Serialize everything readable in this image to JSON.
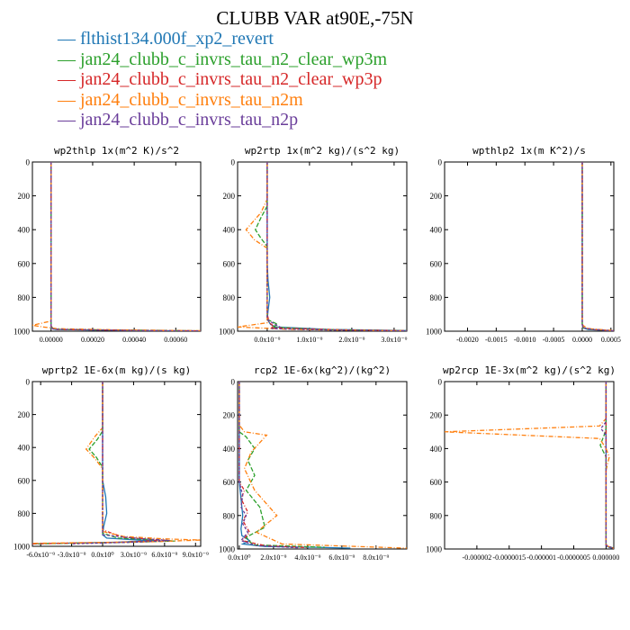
{
  "title": "CLUBB VAR at90E,-75N",
  "legend": [
    {
      "label": "flthist134.000f_xp2_revert",
      "color": "#1f77b4"
    },
    {
      "label": "jan24_clubb_c_invrs_tau_n2_clear_wp3m",
      "color": "#2ca02c"
    },
    {
      "label": "jan24_clubb_c_invrs_tau_n2_clear_wp3p",
      "color": "#d62728"
    },
    {
      "label": "jan24_clubb_c_invrs_tau_n2m",
      "color": "#ff7f0e"
    },
    {
      "label": "jan24_clubb_c_invrs_tau_n2p",
      "color": "#6a3d9a"
    }
  ],
  "chart_data": [
    {
      "type": "line",
      "title": "wp2thlp   1x(m^2 K)/s^2",
      "ylim": [
        1000,
        0
      ],
      "yticks": [
        "0",
        "200",
        "400",
        "600",
        "800",
        "1000"
      ],
      "xlim": [
        -9e-05,
        0.00072
      ],
      "xticks": [
        {
          "v": 0.0,
          "label": "0.00000"
        },
        {
          "v": 0.0002,
          "label": "0.00020"
        },
        {
          "v": 0.0004,
          "label": "0.00040"
        },
        {
          "v": 0.0006,
          "label": "0.00060"
        }
      ],
      "series": [
        {
          "name": "flthist134.000f_xp2_revert",
          "x": [
            0,
            0,
            0,
            2e-05,
            0.00045,
            0.00072
          ],
          "y": [
            0,
            960,
            980,
            990,
            997,
            999
          ]
        },
        {
          "name": "jan24_clubb_c_invrs_tau_n2_clear_wp3m",
          "x": [
            0,
            0,
            1e-05,
            5e-05,
            0.0006,
            0.00072
          ],
          "y": [
            0,
            970,
            985,
            990,
            996,
            998
          ]
        },
        {
          "name": "jan24_clubb_c_invrs_tau_n2_clear_wp3p",
          "x": [
            0,
            0,
            1e-05,
            3e-05,
            0.0005,
            0.00072
          ],
          "y": [
            0,
            970,
            985,
            990,
            996,
            998
          ]
        },
        {
          "name": "jan24_clubb_c_invrs_tau_n2m",
          "x": [
            0,
            0,
            -9e-05,
            -4e-05,
            3e-05,
            0.0003,
            0.00072
          ],
          "y": [
            0,
            940,
            965,
            975,
            985,
            992,
            997
          ]
        },
        {
          "name": "jan24_clubb_c_invrs_tau_n2p",
          "x": [
            0,
            0,
            1e-05,
            0.0004,
            0.00072
          ],
          "y": [
            0,
            975,
            988,
            996,
            998
          ]
        }
      ]
    },
    {
      "type": "line",
      "title": "wp2rtp   1x(m^2 kg)/(s^2 kg)",
      "ylim": [
        1000,
        0
      ],
      "yticks": [
        "0",
        "200",
        "400",
        "600",
        "800",
        "1000"
      ],
      "xlim": [
        -7e-10,
        3.3e-09
      ],
      "xticks": [
        {
          "v": 0.0,
          "label": "0.0x10⁻⁹"
        },
        {
          "v": 1e-09,
          "label": "1.0x10⁻⁹"
        },
        {
          "v": 2e-09,
          "label": "2.0x10⁻⁹"
        },
        {
          "v": 3e-09,
          "label": "3.0x10⁻⁹"
        }
      ],
      "series": [
        {
          "name": "flthist134.000f_xp2_revert",
          "x": [
            0,
            0,
            2e-11,
            6e-11,
            2e-11,
            0,
            8e-11,
            2e-10,
            1.5e-09,
            3.3e-09
          ],
          "y": [
            0,
            600,
            700,
            800,
            880,
            930,
            960,
            975,
            990,
            996
          ]
        },
        {
          "name": "jan24_clubb_c_invrs_tau_n2_clear_wp3m",
          "x": [
            0,
            0,
            -1.5e-10,
            -2.8e-10,
            -1.5e-10,
            0,
            0,
            2.5e-10,
            1.2e-10,
            1.2e-09,
            3.3e-09
          ],
          "y": [
            0,
            260,
            330,
            400,
            450,
            500,
            930,
            960,
            975,
            990,
            997
          ]
        },
        {
          "name": "jan24_clubb_c_invrs_tau_n2_clear_wp3p",
          "x": [
            0,
            0,
            5e-11,
            1.5e-10,
            8e-11,
            1.8e-09,
            3.3e-09
          ],
          "y": [
            0,
            900,
            950,
            970,
            980,
            992,
            997
          ]
        },
        {
          "name": "jan24_clubb_c_invrs_tau_n2m",
          "x": [
            0,
            0,
            -1.5e-10,
            -5e-10,
            -3e-10,
            0,
            0,
            -7e-10,
            6e-10,
            3.3e-09
          ],
          "y": [
            0,
            220,
            300,
            400,
            460,
            510,
            950,
            975,
            990,
            998
          ]
        },
        {
          "name": "jan24_clubb_c_invrs_tau_n2p",
          "x": [
            0,
            0,
            1.5e-10,
            3e-10,
            1e-10,
            1.5e-09,
            3.3e-09
          ],
          "y": [
            0,
            930,
            955,
            975,
            985,
            993,
            998
          ]
        }
      ]
    },
    {
      "type": "line",
      "title": "wpthlp2   1x(m K^2)/s",
      "ylim": [
        1000,
        0
      ],
      "yticks": [
        "0",
        "200",
        "400",
        "600",
        "800",
        "1000"
      ],
      "xlim": [
        -0.0024,
        0.00055
      ],
      "xticks": [
        {
          "v": -0.002,
          "label": "-0.0020"
        },
        {
          "v": -0.0015,
          "label": "-0.0015"
        },
        {
          "v": -0.001,
          "label": "-0.0010"
        },
        {
          "v": -0.0005,
          "label": "-0.0005"
        },
        {
          "v": 0.0,
          "label": "0.0000"
        },
        {
          "v": 0.0005,
          "label": "0.0005"
        }
      ],
      "series": [
        {
          "name": "flthist134.000f_xp2_revert",
          "x": [
            0,
            0,
            1e-05,
            0.0001,
            0.00055
          ],
          "y": [
            0,
            960,
            980,
            990,
            998
          ]
        },
        {
          "name": "jan24_clubb_c_invrs_tau_n2_clear_wp3m",
          "x": [
            0,
            0,
            2e-05,
            0.0002,
            0.00055
          ],
          "y": [
            0,
            960,
            980,
            990,
            998
          ]
        },
        {
          "name": "jan24_clubb_c_invrs_tau_n2_clear_wp3p",
          "x": [
            0,
            0,
            2e-05,
            0.0002,
            0.00055
          ],
          "y": [
            0,
            960,
            980,
            990,
            998
          ]
        },
        {
          "name": "jan24_clubb_c_invrs_tau_n2m",
          "x": [
            0,
            0,
            1e-05,
            0.0001,
            0.00055
          ],
          "y": [
            0,
            940,
            965,
            985,
            996
          ]
        },
        {
          "name": "jan24_clubb_c_invrs_tau_n2p",
          "x": [
            0,
            0,
            2e-05,
            0.0002,
            0.00055
          ],
          "y": [
            0,
            960,
            980,
            990,
            998
          ]
        }
      ]
    },
    {
      "type": "line",
      "title": "wprtp2   1E-6x(m kg)/(s kg)",
      "ylim": [
        1000,
        0
      ],
      "yticks": [
        "0",
        "200",
        "400",
        "600",
        "800",
        "1000"
      ],
      "xlim": [
        -6.8e-09,
        9.5e-09
      ],
      "xticks": [
        {
          "v": -6e-09,
          "label": "-6.0x10⁻⁹"
        },
        {
          "v": -3e-09,
          "label": "-3.0x10⁻⁹"
        },
        {
          "v": 0.0,
          "label": "0.0x10⁰"
        },
        {
          "v": 3e-09,
          "label": "3.0x10⁻⁹"
        },
        {
          "v": 6e-09,
          "label": "6.0x10⁻⁹"
        },
        {
          "v": 9e-09,
          "label": "9.0x10⁻⁹"
        }
      ],
      "series": [
        {
          "name": "flthist134.000f_xp2_revert",
          "x": [
            0,
            0,
            3e-10,
            4e-10,
            1e-10,
            0,
            4e-10,
            3e-09,
            5e-09,
            1.5e-09,
            -6.8e-09
          ],
          "y": [
            0,
            600,
            700,
            800,
            880,
            930,
            950,
            960,
            965,
            975,
            985
          ]
        },
        {
          "name": "jan24_clubb_c_invrs_tau_n2_clear_wp3m",
          "x": [
            0,
            0,
            -5e-10,
            -1.3e-09,
            -6e-10,
            0,
            0,
            1.5e-09,
            5e-09,
            7e-09,
            3e-09,
            -6.8e-09
          ],
          "y": [
            0,
            300,
            350,
            410,
            460,
            520,
            920,
            950,
            960,
            968,
            975,
            985
          ]
        },
        {
          "name": "jan24_clubb_c_invrs_tau_n2_clear_wp3p",
          "x": [
            0,
            0,
            2e-09,
            6e-09,
            2e-09,
            -6.8e-09
          ],
          "y": [
            0,
            900,
            945,
            962,
            975,
            985
          ]
        },
        {
          "name": "jan24_clubb_c_invrs_tau_n2m",
          "x": [
            0,
            0,
            -7e-10,
            -1.6e-09,
            -7e-10,
            0,
            0,
            2e-09,
            6e-09,
            9.5e-09,
            5e-09,
            -6.8e-09
          ],
          "y": [
            0,
            280,
            330,
            410,
            470,
            530,
            910,
            940,
            955,
            962,
            972,
            982
          ]
        },
        {
          "name": "jan24_clubb_c_invrs_tau_n2p",
          "x": [
            0,
            0,
            3e-09,
            6.5e-09,
            3e-09,
            -3e-09
          ],
          "y": [
            0,
            930,
            950,
            965,
            975,
            985
          ]
        }
      ]
    },
    {
      "type": "line",
      "title": "rcp2   1E-6x(kg^2)/(kg^2)",
      "ylim": [
        1000,
        0
      ],
      "yticks": [
        "0",
        "200",
        "400",
        "600",
        "800",
        "1000"
      ],
      "xlim": [
        -1e-10,
        9.8e-09
      ],
      "xticks": [
        {
          "v": 0.0,
          "label": "0.0x10⁰"
        },
        {
          "v": 2e-09,
          "label": "2.0x10⁻⁹"
        },
        {
          "v": 4e-09,
          "label": "4.0x10⁻⁹"
        },
        {
          "v": 6e-09,
          "label": "6.0x10⁻⁹"
        },
        {
          "v": 8e-09,
          "label": "8.0x10⁻⁹"
        }
      ],
      "series": [
        {
          "name": "flthist134.000f_xp2_revert",
          "x": [
            0,
            0,
            1e-10,
            2e-10,
            1e-10,
            1.5e-10,
            6e-10,
            2e-10,
            1.5e-09,
            4.5e-09,
            6.5e-09
          ],
          "y": [
            0,
            600,
            700,
            800,
            880,
            920,
            950,
            970,
            985,
            990,
            995
          ]
        },
        {
          "name": "jan24_clubb_c_invrs_tau_n2_clear_wp3m",
          "x": [
            0,
            0,
            4e-10,
            9e-10,
            5e-10,
            9e-10,
            4e-10,
            1.2e-09,
            1.5e-09,
            4e-10,
            8e-10,
            5e-09
          ],
          "y": [
            0,
            300,
            330,
            400,
            470,
            560,
            650,
            750,
            870,
            930,
            975,
            990
          ]
        },
        {
          "name": "jan24_clubb_c_invrs_tau_n2_clear_wp3p",
          "x": [
            0,
            0,
            3e-10,
            1e-10,
            5e-10,
            2e-10,
            6e-10,
            2e-10,
            1.5e-09,
            4e-09
          ],
          "y": [
            0,
            600,
            650,
            700,
            780,
            830,
            900,
            950,
            980,
            992
          ]
        },
        {
          "name": "jan24_clubb_c_invrs_tau_n2m",
          "x": [
            0,
            0,
            3e-10,
            1.6e-09,
            7e-10,
            3e-10,
            9e-10,
            2.2e-09,
            1e-09,
            2.5e-09,
            9.8e-09
          ],
          "y": [
            0,
            260,
            300,
            320,
            420,
            520,
            650,
            800,
            900,
            970,
            995
          ]
        },
        {
          "name": "jan24_clubb_c_invrs_tau_n2p",
          "x": [
            0,
            0,
            2e-10,
            1e-10,
            4e-10,
            2e-10,
            5e-10,
            1e-10,
            1e-09,
            3.5e-09
          ],
          "y": [
            0,
            600,
            680,
            750,
            800,
            850,
            900,
            950,
            980,
            993
          ]
        }
      ]
    },
    {
      "type": "line",
      "title": "wp2rcp   1E-3x(m^2 kg)/(s^2 kg)",
      "ylim": [
        1000,
        0
      ],
      "yticks": [
        "0",
        "200",
        "400",
        "600",
        "800",
        "1000"
      ],
      "xlim": [
        -2.5e-06,
        1.2e-07
      ],
      "xticks": [
        {
          "v": -2e-06,
          "label": "-0.000002"
        },
        {
          "v": -1.5e-06,
          "label": "-0.0000015"
        },
        {
          "v": -1e-06,
          "label": "-0.000001"
        },
        {
          "v": -5e-07,
          "label": "-0.0000005"
        },
        {
          "v": 0.0,
          "label": "0.000000"
        }
      ],
      "series": [
        {
          "name": "flthist134.000f_xp2_revert",
          "x": [
            0,
            0,
            2e-08,
            6e-08,
            1.2e-07
          ],
          "y": [
            0,
            970,
            985,
            992,
            997
          ]
        },
        {
          "name": "jan24_clubb_c_invrs_tau_n2_clear_wp3m",
          "x": [
            0,
            0,
            -3e-08,
            -9e-08,
            -4e-08,
            0,
            0,
            1.2e-07
          ],
          "y": [
            0,
            280,
            320,
            380,
            420,
            450,
            980,
            995
          ]
        },
        {
          "name": "jan24_clubb_c_invrs_tau_n2_clear_wp3p",
          "x": [
            0,
            0,
            4e-08,
            1.2e-07
          ],
          "y": [
            0,
            975,
            988,
            996
          ]
        },
        {
          "name": "jan24_clubb_c_invrs_tau_n2m",
          "x": [
            0,
            0,
            -1e-07,
            -2.5e-06,
            -1e-07,
            0,
            5e-08,
            0,
            0,
            1.2e-07
          ],
          "y": [
            0,
            220,
            265,
            300,
            340,
            400,
            450,
            530,
            980,
            996
          ]
        },
        {
          "name": "jan24_clubb_c_invrs_tau_n2p",
          "x": [
            0,
            0,
            -4e-08,
            -8e-08,
            0,
            0,
            1.2e-07
          ],
          "y": [
            0,
            240,
            260,
            280,
            320,
            980,
            996
          ]
        }
      ]
    }
  ]
}
